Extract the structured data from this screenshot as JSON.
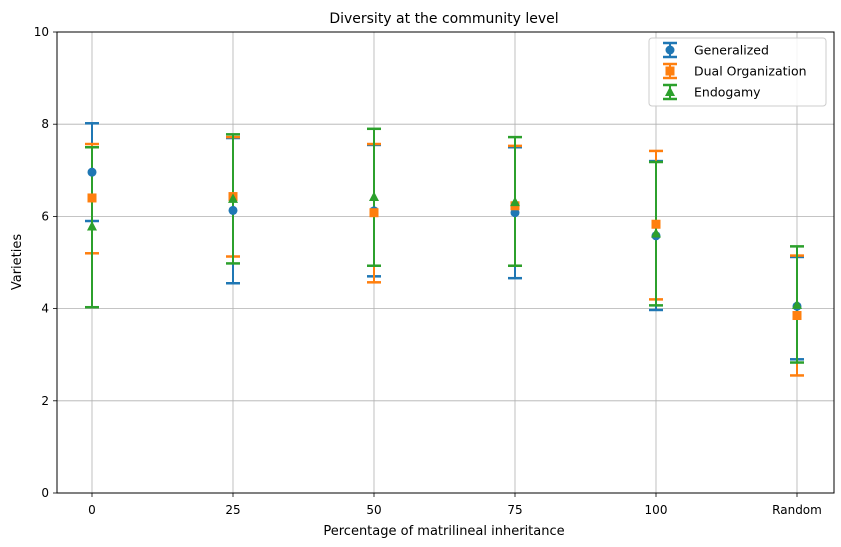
{
  "chart_data": {
    "type": "errorbar",
    "title": "Diversity at the community level",
    "xlabel": "Percentage of matrilineal inheritance",
    "ylabel": "Varieties",
    "categories": [
      "0",
      "25",
      "50",
      "75",
      "100",
      "Random"
    ],
    "ylim": [
      0,
      10
    ],
    "yticks": [
      0,
      2,
      4,
      6,
      8,
      10
    ],
    "grid": true,
    "legend_position": "top-right",
    "series": [
      {
        "name": "Generalized",
        "marker": "circle",
        "color": "#1f77b4",
        "values": [
          6.96,
          6.13,
          6.12,
          6.08,
          5.58,
          4.05
        ],
        "lower": [
          5.9,
          4.55,
          4.7,
          4.66,
          3.97,
          2.9
        ],
        "upper": [
          8.02,
          7.7,
          7.55,
          7.5,
          7.2,
          5.12
        ]
      },
      {
        "name": "Dual Organization",
        "marker": "square",
        "color": "#ff7f0e",
        "values": [
          6.4,
          6.43,
          6.08,
          6.23,
          5.83,
          3.85
        ],
        "lower": [
          5.2,
          5.13,
          4.57,
          4.93,
          4.2,
          2.55
        ],
        "upper": [
          7.57,
          7.72,
          7.57,
          7.53,
          7.42,
          5.15
        ]
      },
      {
        "name": "Endogamy",
        "marker": "triangle",
        "color": "#2ca02c",
        "values": [
          5.78,
          6.38,
          6.42,
          6.31,
          5.63,
          4.08
        ],
        "lower": [
          4.03,
          4.98,
          4.93,
          4.93,
          4.07,
          2.83
        ],
        "upper": [
          7.5,
          7.78,
          7.9,
          7.72,
          7.18,
          5.35
        ]
      }
    ]
  }
}
